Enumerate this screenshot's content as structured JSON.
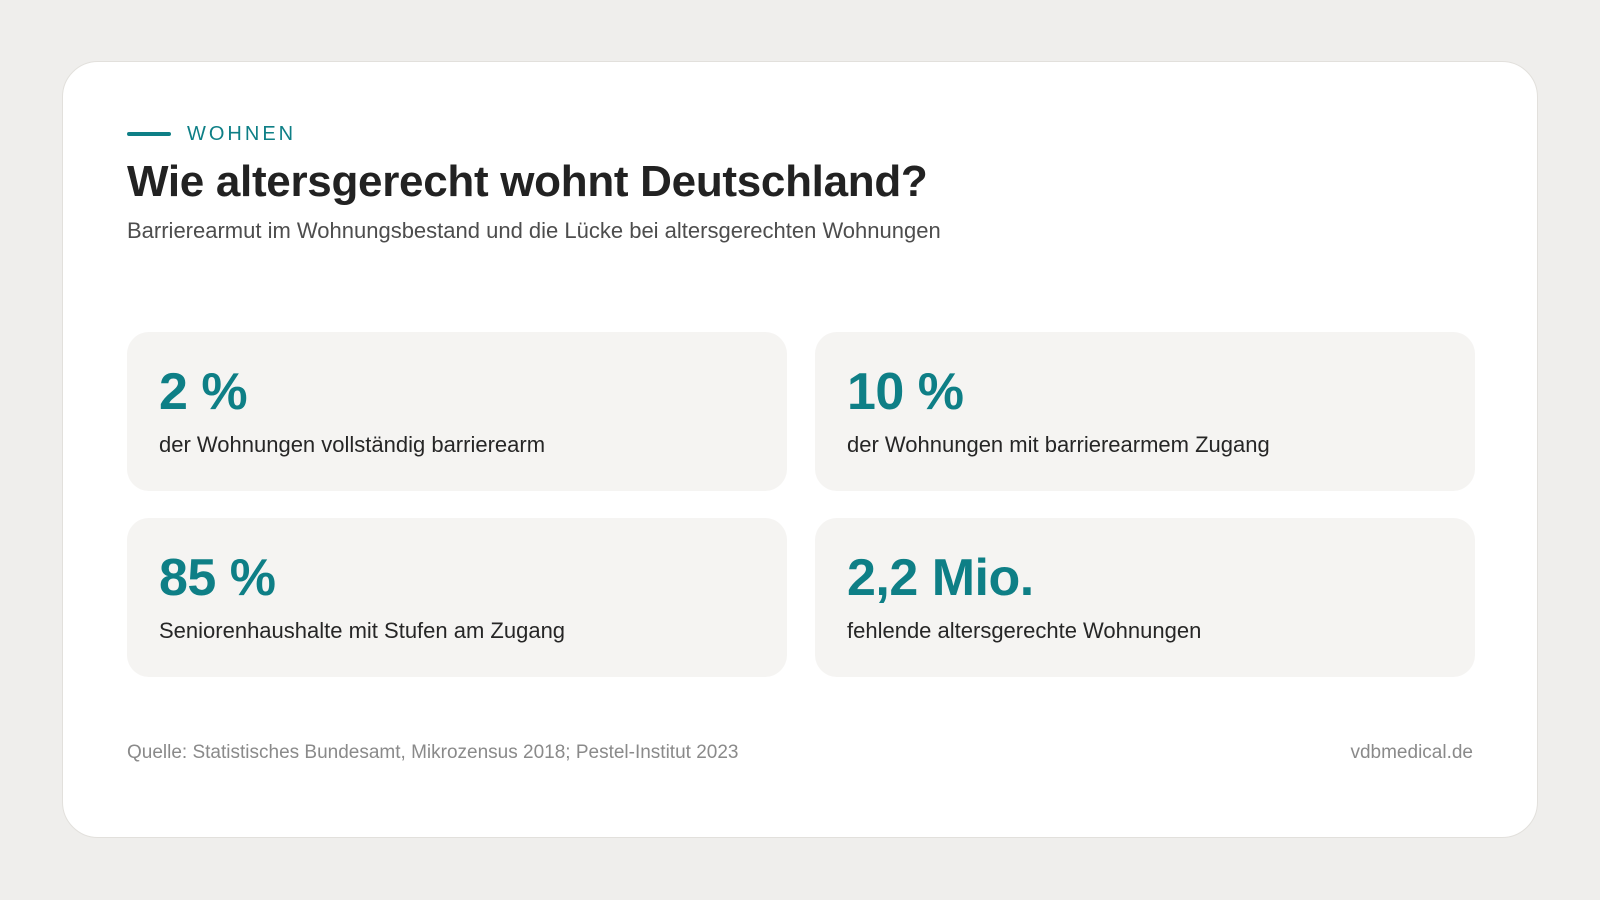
{
  "colors": {
    "accent": "#0e7f86",
    "background": "#efeeec",
    "card": "#ffffff",
    "stat_tile": "#f5f4f2",
    "title": "#222222",
    "muted": "#8a8a8a"
  },
  "header": {
    "eyebrow": "WOHNEN",
    "title": "Wie altersgerecht wohnt Deutschland?",
    "subtitle": "Barrierearmut im Wohnungsbestand und die Lücke bei altersgerechten Wohnungen"
  },
  "stats": [
    {
      "value": "2 %",
      "label": "der Wohnungen vollständig barrierearm"
    },
    {
      "value": "10 %",
      "label": "der Wohnungen mit barrierearmem Zugang"
    },
    {
      "value": "85 %",
      "label": "Seniorenhaushalte mit Stufen am Zugang"
    },
    {
      "value": "2,2 Mio.",
      "label": "fehlende altersgerechte Wohnungen"
    }
  ],
  "footer": {
    "source": "Quelle: Statistisches Bundesamt, Mikrozensus 2018; Pestel-Institut 2023",
    "site": "vdbmedical.de"
  }
}
